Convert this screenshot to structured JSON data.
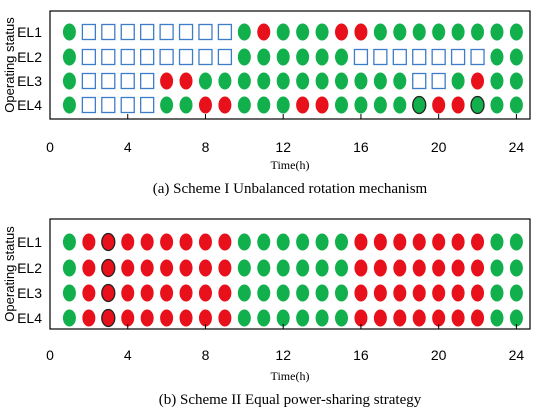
{
  "colors": {
    "on": "#e8101a",
    "off": "#12b04c",
    "standby_stroke": "#3d7cc9",
    "highlight_stroke": "#222222"
  },
  "chart_data": [
    {
      "type": "scatter",
      "title": "(a) Scheme I  Unbalanced rotation mechanism",
      "xlabel": "Time(h)",
      "ylabel": "Operating status",
      "x_ticks": [
        "0",
        "4",
        "8",
        "12",
        "16",
        "20",
        "24"
      ],
      "xlim": [
        0,
        24.7
      ],
      "categories": [
        "EL1",
        "EL2",
        "EL3",
        "EL4"
      ],
      "hours": [
        1,
        2,
        3,
        4,
        5,
        6,
        7,
        8,
        9,
        10,
        11,
        12,
        13,
        14,
        15,
        16,
        17,
        18,
        19,
        20,
        21,
        22,
        23,
        24
      ],
      "legend_codes": {
        "G": "green circle",
        "R": "red circle",
        "S": "open blue square",
        "g": "green circle with dark outline"
      },
      "status": [
        [
          "G",
          "S",
          "S",
          "S",
          "S",
          "S",
          "S",
          "S",
          "S",
          "G",
          "R",
          "G",
          "G",
          "G",
          "R",
          "R",
          "G",
          "G",
          "G",
          "G",
          "G",
          "G",
          "G",
          "G"
        ],
        [
          "G",
          "S",
          "S",
          "S",
          "S",
          "S",
          "S",
          "S",
          "S",
          "G",
          "G",
          "G",
          "G",
          "G",
          "G",
          "S",
          "S",
          "S",
          "S",
          "S",
          "S",
          "S",
          "G",
          "G"
        ],
        [
          "G",
          "S",
          "S",
          "S",
          "S",
          "R",
          "R",
          "G",
          "G",
          "G",
          "G",
          "G",
          "G",
          "G",
          "G",
          "G",
          "G",
          "G",
          "S",
          "S",
          "G",
          "R",
          "G",
          "G"
        ],
        [
          "G",
          "S",
          "S",
          "S",
          "S",
          "G",
          "G",
          "R",
          "R",
          "G",
          "G",
          "G",
          "R",
          "R",
          "G",
          "G",
          "G",
          "G",
          "g",
          "R",
          "R",
          "g",
          "G",
          "G"
        ]
      ]
    },
    {
      "type": "scatter",
      "title": "(b) Scheme II Equal power-sharing strategy",
      "xlabel": "Time(h)",
      "ylabel": "Operating status",
      "x_ticks": [
        "0",
        "4",
        "8",
        "12",
        "16",
        "20",
        "24"
      ],
      "xlim": [
        0,
        24.7
      ],
      "categories": [
        "EL1",
        "EL2",
        "EL3",
        "EL4"
      ],
      "hours": [
        1,
        2,
        3,
        4,
        5,
        6,
        7,
        8,
        9,
        10,
        11,
        12,
        13,
        14,
        15,
        16,
        17,
        18,
        19,
        20,
        21,
        22,
        23,
        24
      ],
      "legend_codes": {
        "G": "green circle",
        "R": "red circle",
        "r": "red circle with dark outline"
      },
      "status": [
        [
          "G",
          "R",
          "r",
          "R",
          "R",
          "R",
          "R",
          "R",
          "R",
          "G",
          "G",
          "G",
          "G",
          "G",
          "G",
          "R",
          "R",
          "R",
          "R",
          "R",
          "R",
          "R",
          "G",
          "G"
        ],
        [
          "G",
          "R",
          "r",
          "R",
          "R",
          "R",
          "R",
          "R",
          "R",
          "G",
          "G",
          "G",
          "G",
          "G",
          "G",
          "R",
          "R",
          "R",
          "R",
          "R",
          "R",
          "R",
          "G",
          "G"
        ],
        [
          "G",
          "R",
          "r",
          "R",
          "R",
          "R",
          "R",
          "R",
          "R",
          "G",
          "G",
          "G",
          "G",
          "G",
          "G",
          "R",
          "R",
          "R",
          "R",
          "R",
          "R",
          "R",
          "G",
          "G"
        ],
        [
          "G",
          "R",
          "r",
          "R",
          "R",
          "R",
          "R",
          "R",
          "R",
          "G",
          "G",
          "G",
          "G",
          "G",
          "G",
          "R",
          "R",
          "R",
          "R",
          "R",
          "R",
          "R",
          "G",
          "G"
        ]
      ]
    }
  ]
}
